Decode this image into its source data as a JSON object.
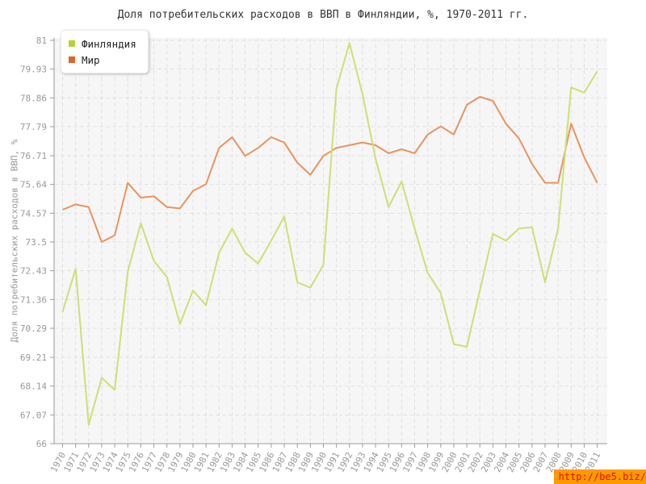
{
  "title": "Доля потребительских расходов в ВВП в Финляндии, %, 1970-2011 гг.",
  "watermark": "http://be5.biz/",
  "colors": {
    "plot_bg": "#f6f6f6",
    "grid": "#e1e1e1",
    "axis": "#9b9b9b",
    "tick_text": "#999999",
    "title_text": "#333333",
    "watermark_bg": "#ff9900",
    "watermark_text": "#dd1100"
  },
  "chart_data": {
    "type": "line",
    "title": "Доля потребительских расходов в ВВП в Финляндии, %, 1970-2011 гг.",
    "xlabel": "",
    "ylabel": "Доля потребительских расходов в ВВП, %",
    "ylim": [
      66,
      81
    ],
    "grid": true,
    "legend_position": "top-left",
    "y_ticks": [
      66,
      67.07,
      68.14,
      69.21,
      70.29,
      71.36,
      72.43,
      73.5,
      74.57,
      75.64,
      76.71,
      77.79,
      78.86,
      79.93,
      81
    ],
    "y_tick_labels": [
      "66",
      "67.07",
      "68.14",
      "69.21",
      "70.29",
      "71.36",
      "72.43",
      "73.5",
      "74.57",
      "75.64",
      "76.71",
      "77.79",
      "78.86",
      "79.93",
      "81"
    ],
    "x": [
      1970,
      1971,
      1972,
      1973,
      1974,
      1975,
      1976,
      1977,
      1978,
      1979,
      1980,
      1981,
      1982,
      1983,
      1984,
      1985,
      1986,
      1987,
      1988,
      1989,
      1990,
      1991,
      1992,
      1993,
      1994,
      1995,
      1996,
      1997,
      1998,
      1999,
      2000,
      2001,
      2002,
      2003,
      2004,
      2005,
      2006,
      2007,
      2008,
      2009,
      2010,
      2011
    ],
    "series": [
      {
        "id": "finland-line",
        "name": "Финляндия",
        "color": "#b5d333",
        "line_color": "#cddf75",
        "values": [
          70.9,
          72.5,
          66.7,
          68.45,
          68.0,
          72.4,
          74.2,
          72.8,
          72.2,
          70.45,
          71.7,
          71.15,
          73.1,
          74.0,
          73.1,
          72.7,
          73.55,
          74.45,
          72.0,
          71.8,
          72.65,
          79.2,
          80.9,
          79.0,
          76.6,
          74.8,
          75.75,
          74.0,
          72.35,
          71.6,
          69.7,
          69.6,
          71.7,
          73.8,
          73.55,
          74.0,
          74.05,
          72.0,
          74.0,
          79.25,
          79.05,
          79.85
        ]
      },
      {
        "id": "world-line",
        "name": "Мир",
        "color": "#e2622b",
        "line_color": "#e9935f",
        "values": [
          74.7,
          74.9,
          74.8,
          73.5,
          73.75,
          75.7,
          75.15,
          75.2,
          74.8,
          74.75,
          75.4,
          75.65,
          77.0,
          77.4,
          76.7,
          77.0,
          77.4,
          77.2,
          76.45,
          76.0,
          76.7,
          77.0,
          77.1,
          77.2,
          77.1,
          76.8,
          76.95,
          76.8,
          77.5,
          77.8,
          77.5,
          78.6,
          78.9,
          78.75,
          77.9,
          77.35,
          76.4,
          75.7,
          75.7,
          77.9,
          76.65,
          75.7
        ]
      }
    ]
  }
}
